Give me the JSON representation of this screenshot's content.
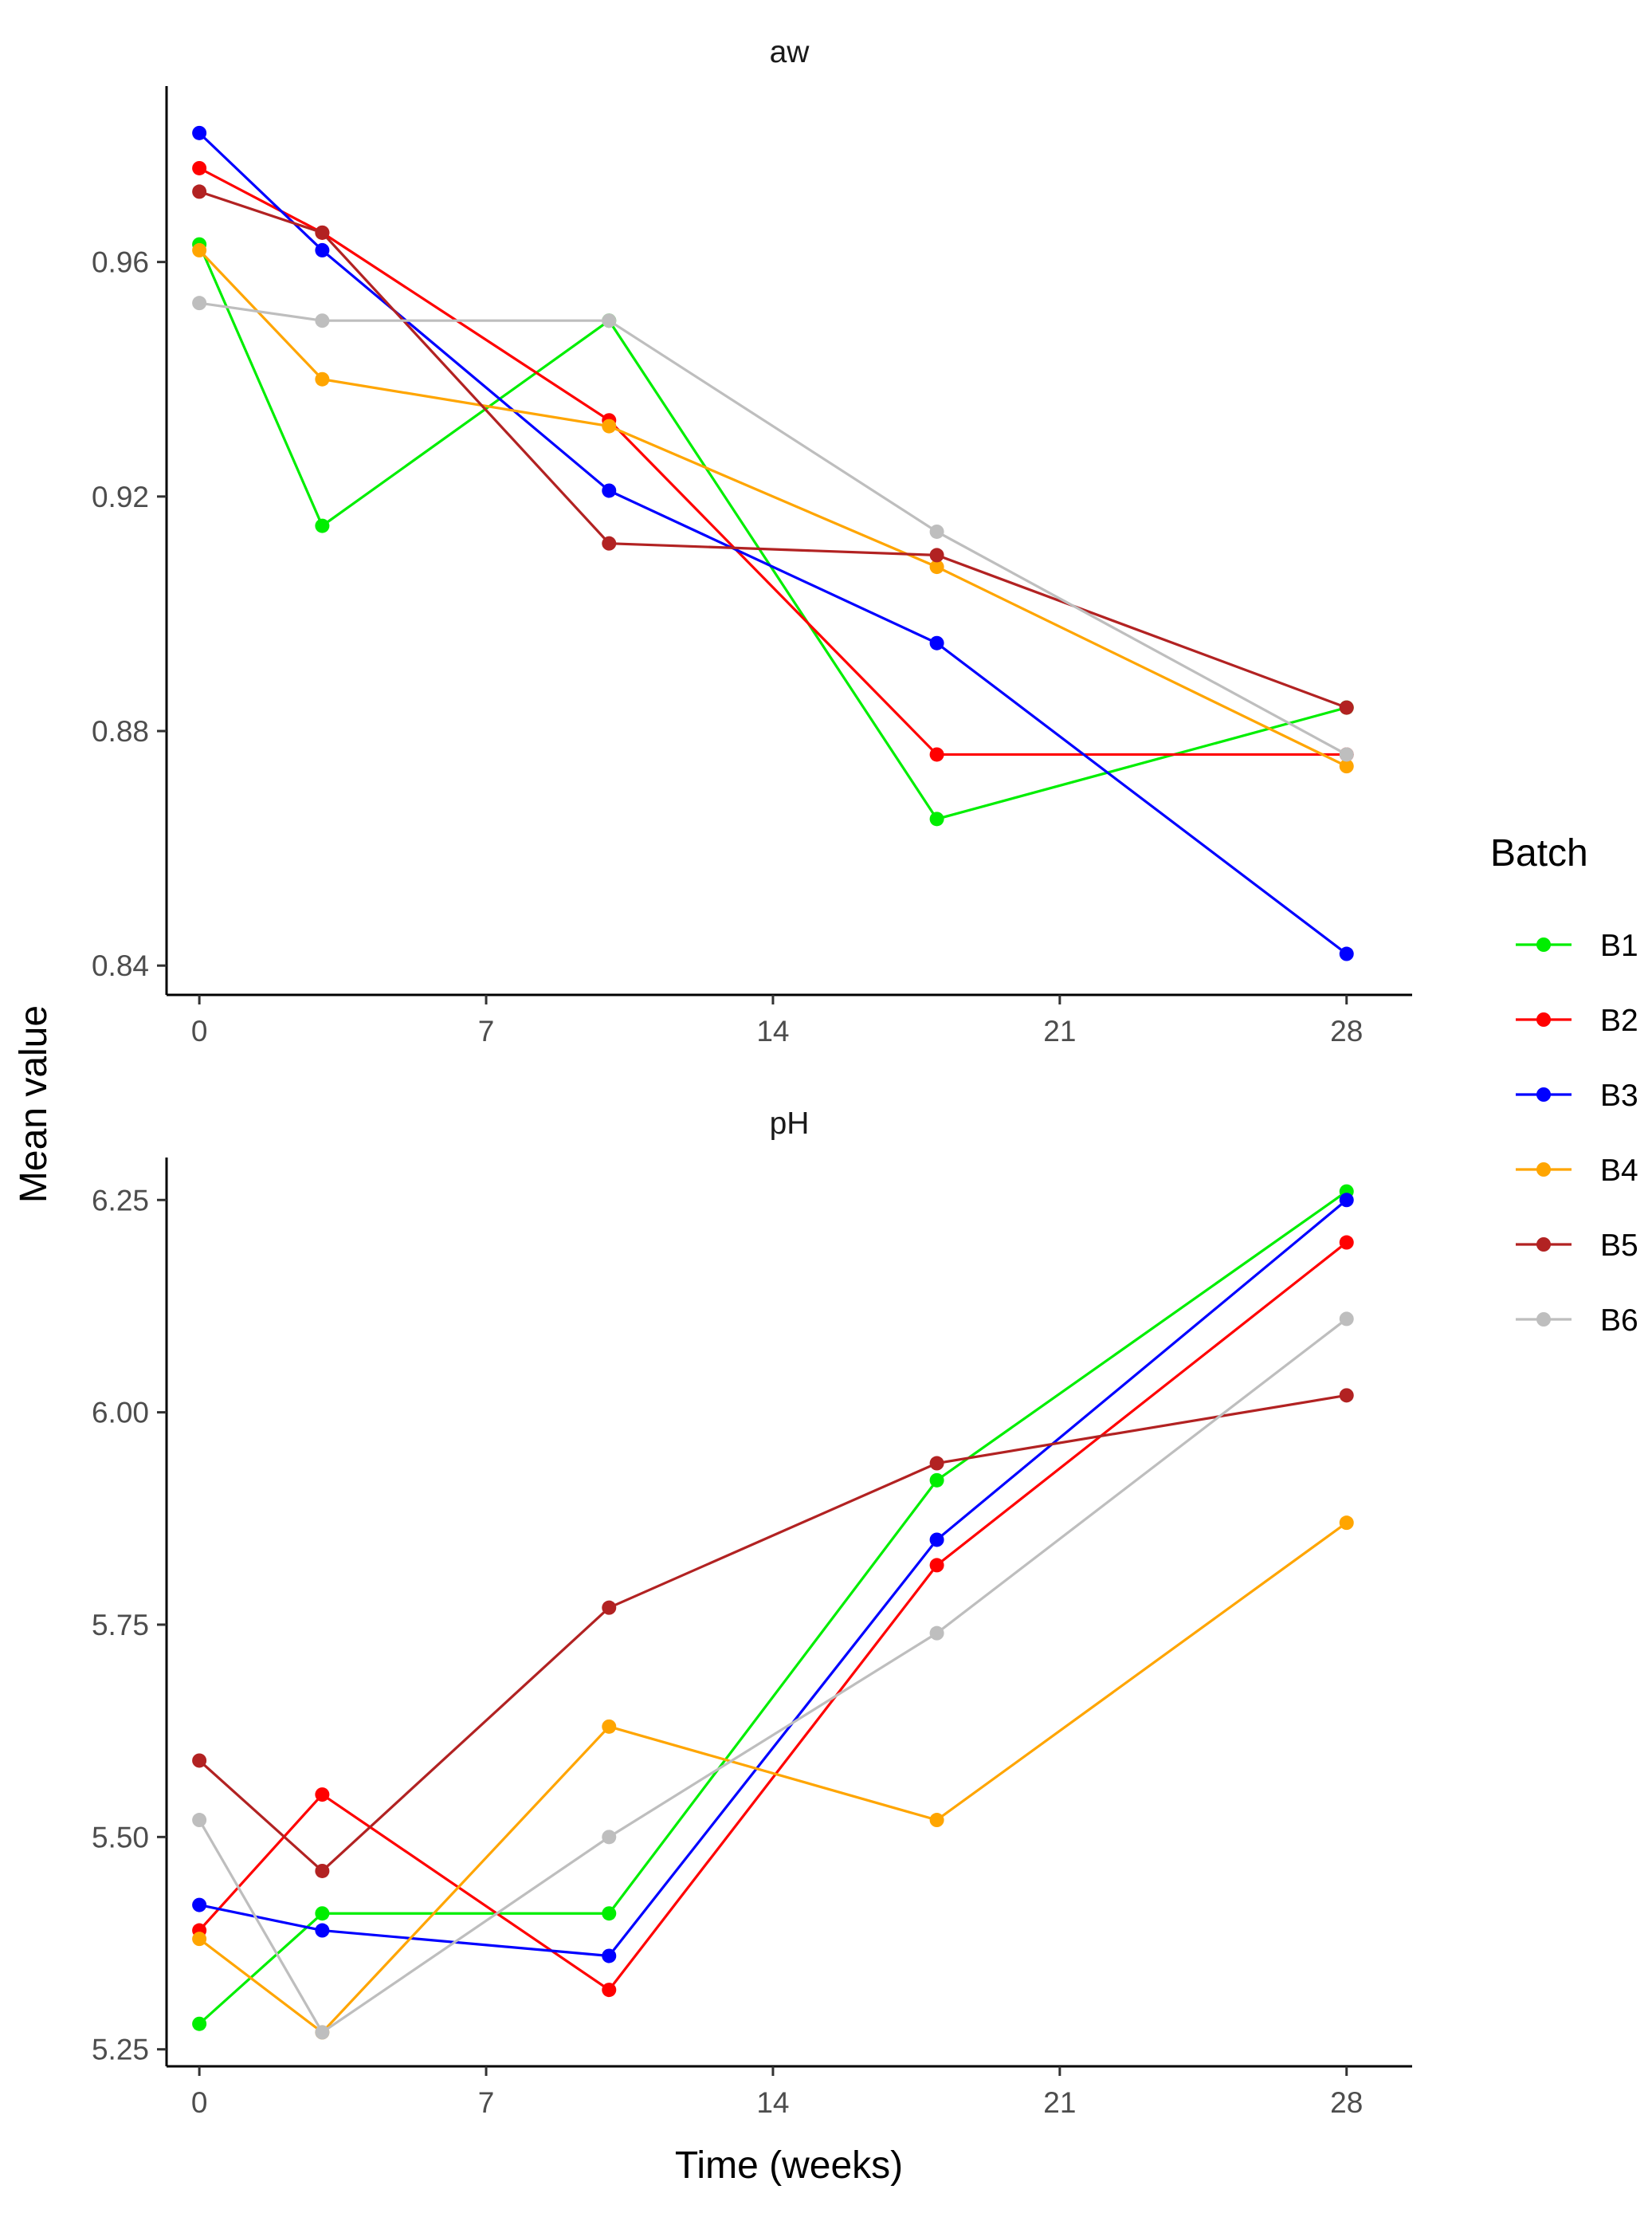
{
  "chart_data": {
    "type": "line",
    "ylabel": "Mean value",
    "xlabel": "Time (weeks)",
    "legend": {
      "title": "Batch",
      "position": "right"
    },
    "x": [
      0,
      3,
      10,
      18,
      28
    ],
    "series_colors": {
      "B1": "#00ee00",
      "B2": "#ff0000",
      "B3": "#0000ff",
      "B4": "#ffa500",
      "B5": "#b22222",
      "B6": "#bebebe"
    },
    "panels": [
      {
        "title": "aw",
        "xlim": [
          -0.8,
          29.6
        ],
        "ylim": [
          0.835,
          0.99
        ],
        "xticks": [
          0,
          7,
          14,
          21,
          28
        ],
        "xtick_labels": [
          "0",
          "7",
          "14",
          "21",
          "28"
        ],
        "yticks": [
          0.84,
          0.88,
          0.92,
          0.96
        ],
        "ytick_labels": [
          "0.84",
          "0.88",
          "0.92",
          "0.96"
        ],
        "series": [
          {
            "name": "B1",
            "values": [
              0.963,
              0.915,
              0.95,
              0.865,
              0.884
            ]
          },
          {
            "name": "B2",
            "values": [
              0.976,
              0.965,
              0.933,
              0.876,
              0.876
            ]
          },
          {
            "name": "B3",
            "values": [
              0.982,
              0.962,
              0.921,
              0.895,
              0.842
            ]
          },
          {
            "name": "B4",
            "values": [
              0.962,
              0.94,
              0.932,
              0.908,
              0.874
            ]
          },
          {
            "name": "B5",
            "values": [
              0.972,
              0.965,
              0.912,
              0.91,
              0.884
            ]
          },
          {
            "name": "B6",
            "values": [
              0.953,
              0.95,
              0.95,
              0.914,
              0.876
            ]
          }
        ]
      },
      {
        "title": "pH",
        "xlim": [
          -0.8,
          29.6
        ],
        "ylim": [
          5.23,
          6.3
        ],
        "xticks": [
          0,
          7,
          14,
          21,
          28
        ],
        "xtick_labels": [
          "0",
          "7",
          "14",
          "21",
          "28"
        ],
        "yticks": [
          5.25,
          5.5,
          5.75,
          6.0,
          6.25
        ],
        "ytick_labels": [
          "5.25",
          "5.50",
          "5.75",
          "6.00",
          "6.25"
        ],
        "series": [
          {
            "name": "B1",
            "values": [
              5.28,
              5.41,
              5.41,
              5.92,
              6.26
            ]
          },
          {
            "name": "B2",
            "values": [
              5.39,
              5.55,
              5.32,
              5.82,
              6.2
            ]
          },
          {
            "name": "B3",
            "values": [
              5.42,
              5.39,
              5.36,
              5.85,
              6.25
            ]
          },
          {
            "name": "B4",
            "values": [
              5.38,
              5.27,
              5.63,
              5.52,
              5.87
            ]
          },
          {
            "name": "B5",
            "values": [
              5.59,
              5.46,
              5.77,
              5.94,
              6.02
            ]
          },
          {
            "name": "B6",
            "values": [
              5.52,
              5.27,
              5.5,
              5.74,
              6.11
            ]
          }
        ]
      }
    ]
  }
}
